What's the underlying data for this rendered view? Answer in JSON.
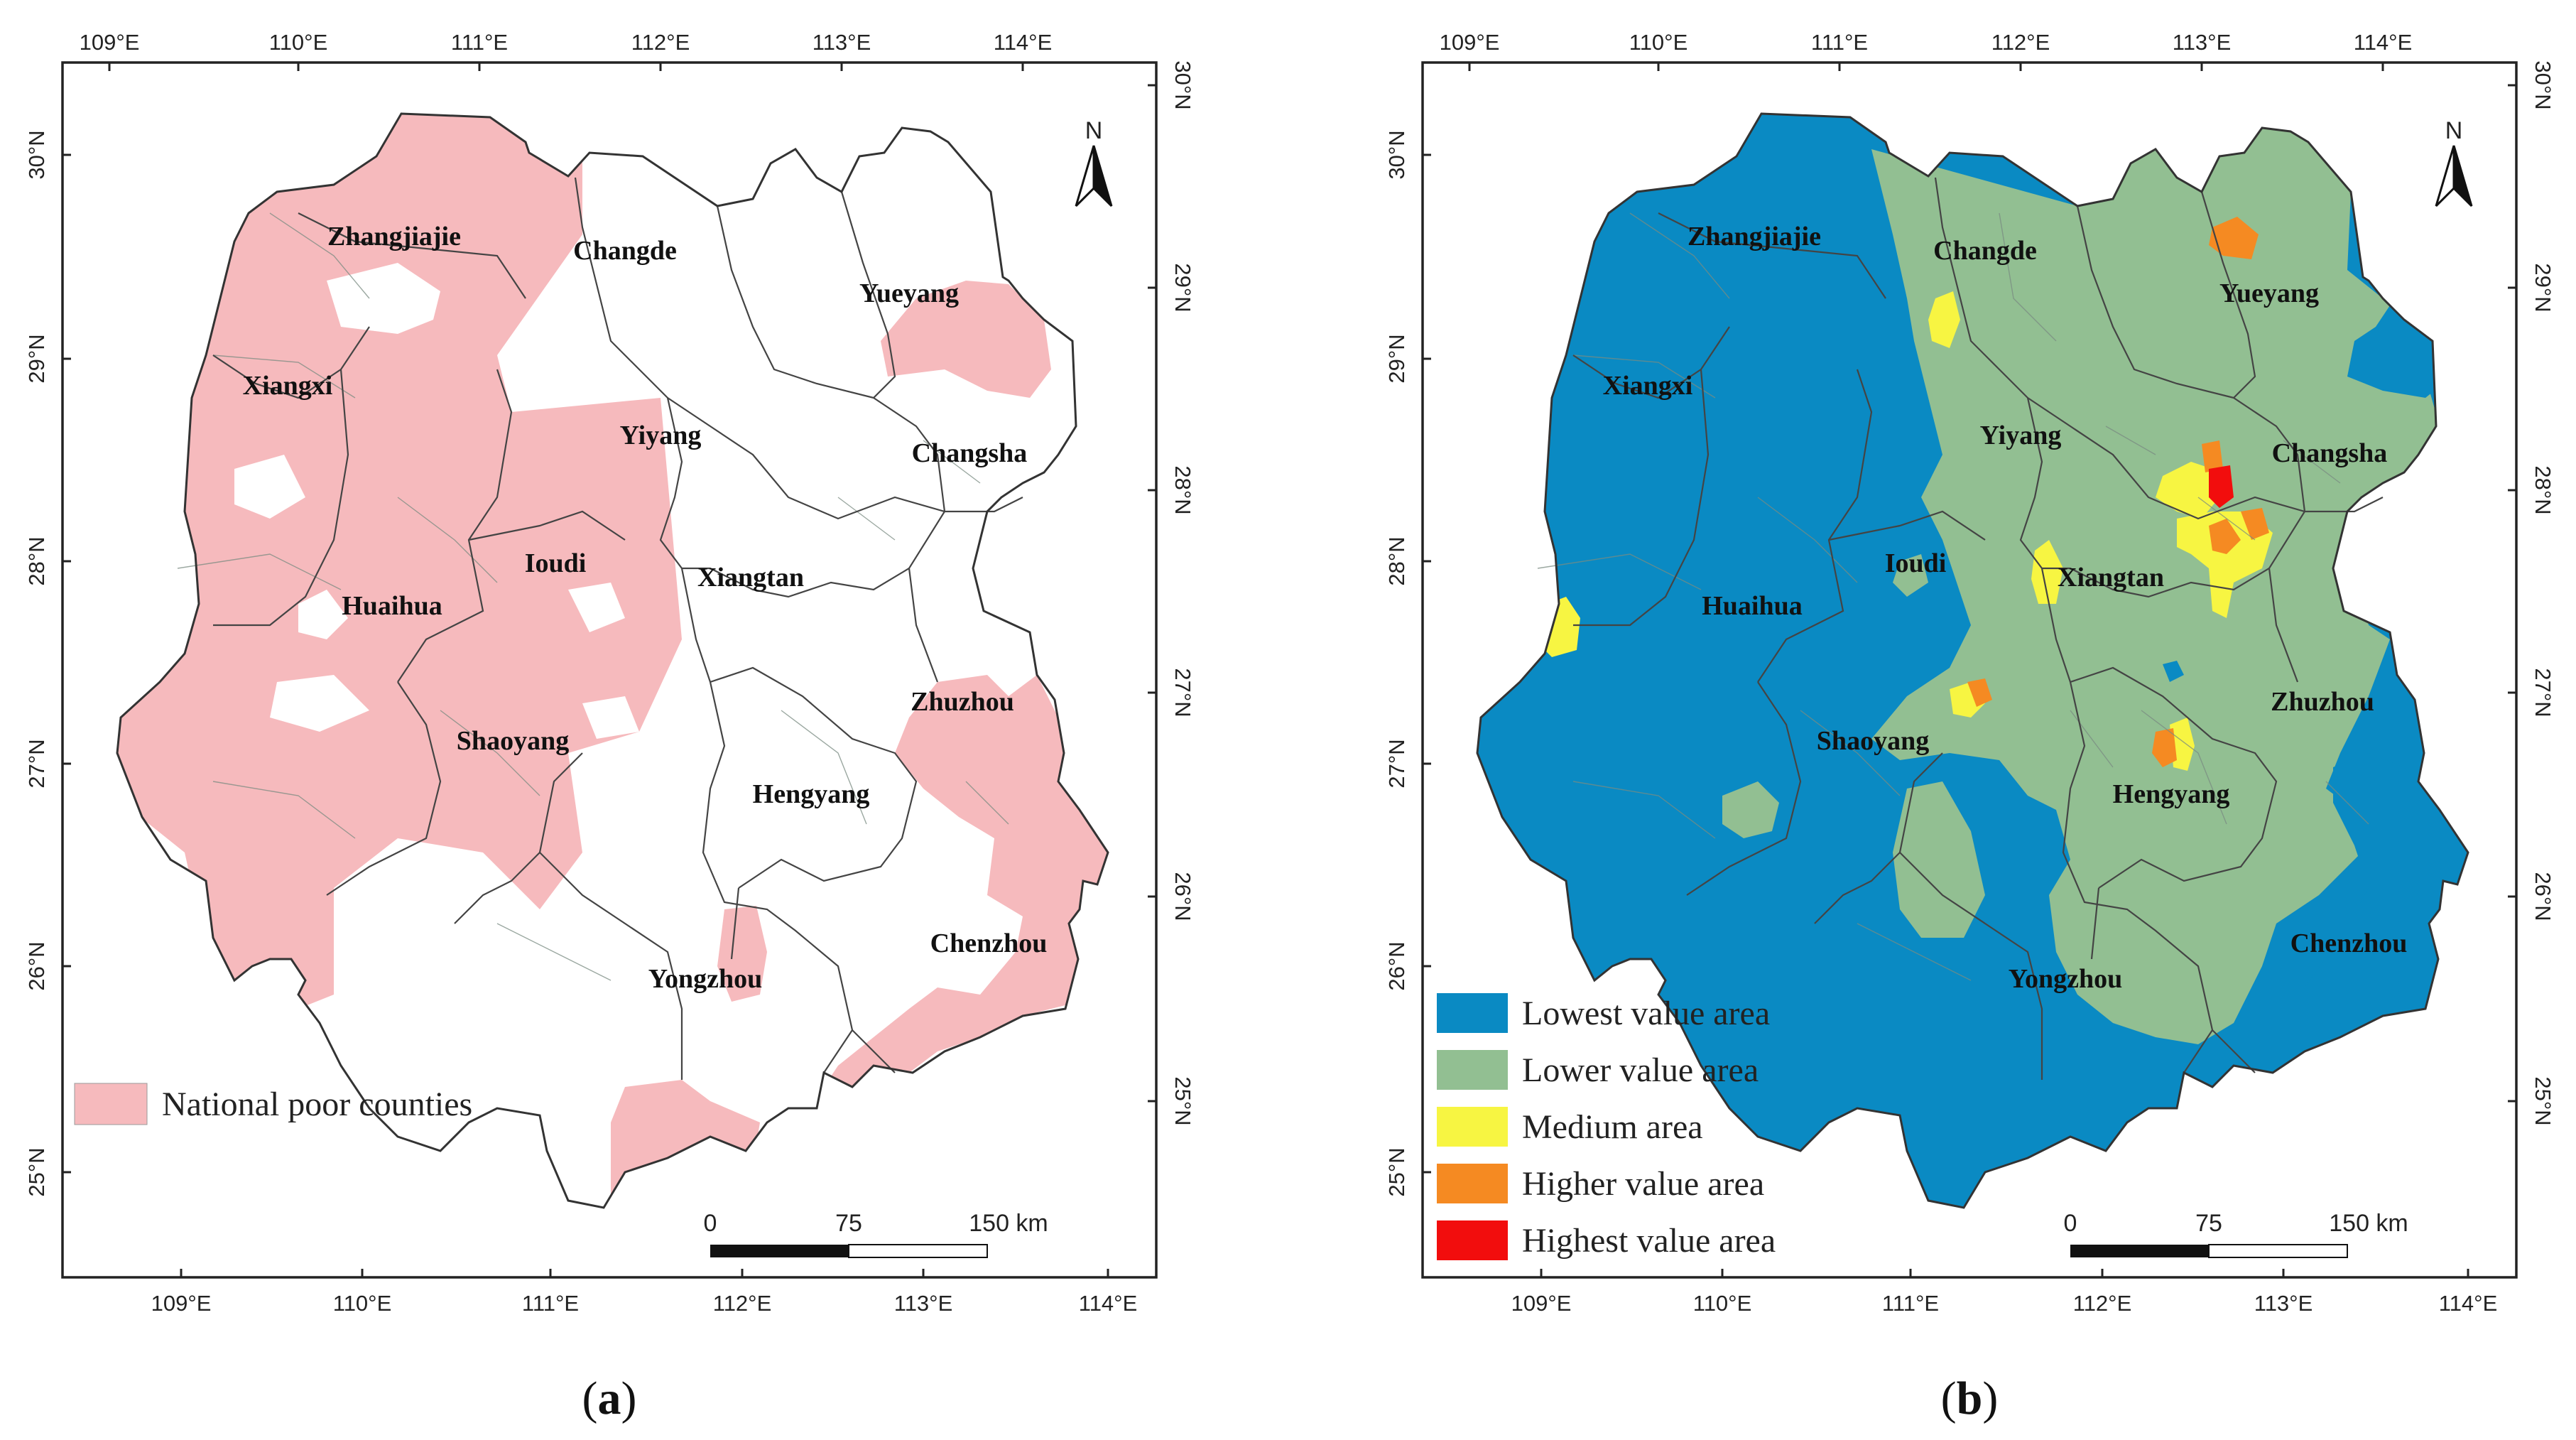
{
  "panels": [
    {
      "caption_letter": "a",
      "top_lon_labels": [
        "109°E",
        "110°E",
        "111°E",
        "112°E",
        "113°E",
        "114°E"
      ],
      "bottom_lon_labels": [
        "109°E",
        "110°E",
        "111°E",
        "112°E",
        "113°E",
        "114°E"
      ],
      "left_lat_labels": [
        "30°N",
        "29°N",
        "28°N",
        "27°N",
        "26°N",
        "25°N"
      ],
      "right_lat_labels": [
        "30°N",
        "29°N",
        "28°N",
        "27°N",
        "26°N",
        "25°N"
      ],
      "cities": [
        "Zhangjiajie",
        "Changde",
        "Yueyang",
        "Xiangxi",
        "Yiyang",
        "Changsha",
        "Ioudi",
        "Xiangtan",
        "Huaihua",
        "Shaoyang",
        "Zhuzhou",
        "Hengyang",
        "Chenzhou",
        "Yongzhou"
      ],
      "legend": [
        {
          "label": "National poor counties",
          "color": "#f6babd"
        }
      ],
      "north": "N",
      "scale": {
        "zero": "0",
        "mid": "75",
        "end": "150 km"
      }
    },
    {
      "caption_letter": "b",
      "top_lon_labels": [
        "109°E",
        "110°E",
        "111°E",
        "112°E",
        "113°E",
        "114°E"
      ],
      "bottom_lon_labels": [
        "109°E",
        "110°E",
        "111°E",
        "112°E",
        "113°E",
        "114°E"
      ],
      "left_lat_labels": [
        "30°N",
        "29°N",
        "28°N",
        "27°N",
        "26°N",
        "25°N"
      ],
      "right_lat_labels": [
        "30°N",
        "29°N",
        "28°N",
        "27°N",
        "26°N",
        "25°N"
      ],
      "cities": [
        "Zhangjiajie",
        "Changde",
        "Yueyang",
        "Xiangxi",
        "Yiyang",
        "Changsha",
        "Ioudi",
        "Xiangtan",
        "Huaihua",
        "Shaoyang",
        "Zhuzhou",
        "Hengyang",
        "Chenzhou",
        "Yongzhou"
      ],
      "legend": [
        {
          "label": "Lowest value area",
          "color": "#0a8ac3"
        },
        {
          "label": "Lower value area",
          "color": "#92bf92"
        },
        {
          "label": "Medium area",
          "color": "#f7f542"
        },
        {
          "label": "Higher value area",
          "color": "#f58a22"
        },
        {
          "label": "Highest value area",
          "color": "#f20d0d"
        }
      ],
      "north": "N",
      "scale": {
        "zero": "0",
        "mid": "75",
        "end": "150 km"
      }
    }
  ],
  "colors": {
    "poor": "#f6babd",
    "lowest": "#0a8ac3",
    "lower": "#92bf92",
    "medium": "#f7f542",
    "higher": "#f58a22",
    "highest": "#f20d0d",
    "border": "#444444"
  }
}
